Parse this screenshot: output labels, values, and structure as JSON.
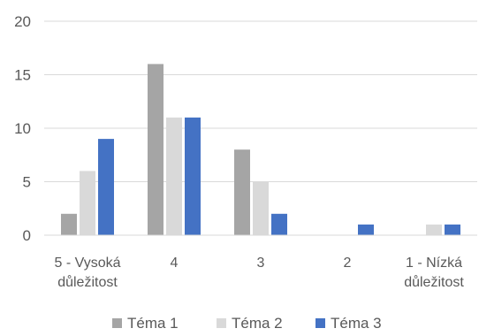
{
  "chart_data": {
    "type": "bar",
    "categories": [
      [
        "5 - Vysoká",
        "důležitost"
      ],
      [
        "4"
      ],
      [
        "3"
      ],
      [
        "2"
      ],
      [
        "1 - Nízká",
        "důležitost"
      ]
    ],
    "series": [
      {
        "name": "Téma 1",
        "color": "#a5a5a5",
        "values": [
          2,
          16,
          8,
          0,
          0
        ]
      },
      {
        "name": "Téma 2",
        "color": "#d9d9d9",
        "values": [
          6,
          11,
          5,
          0,
          1
        ]
      },
      {
        "name": "Téma 3",
        "color": "#4472c4",
        "values": [
          9,
          11,
          2,
          1,
          1
        ]
      }
    ],
    "ylim": [
      0,
      20
    ],
    "yticks": [
      0,
      5,
      10,
      15,
      20
    ],
    "grid": true,
    "legend": "bottom"
  }
}
